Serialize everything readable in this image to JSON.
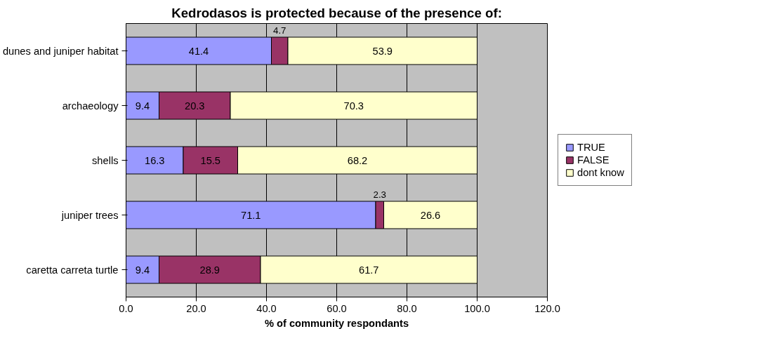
{
  "chart_data": {
    "type": "bar",
    "orientation": "horizontal",
    "stacked": true,
    "title": "Kedrodasos is protected because of the presence of:",
    "xlabel": "% of community respondants",
    "categories": [
      "dunes and juniper habitat",
      "archaeology",
      "shells",
      "juniper trees",
      "caretta carreta turtle"
    ],
    "series": [
      {
        "name": "TRUE",
        "color": "#9999ff",
        "values": [
          41.4,
          9.4,
          16.3,
          71.1,
          9.4
        ]
      },
      {
        "name": "FALSE",
        "color": "#993366",
        "values": [
          4.7,
          20.3,
          15.5,
          2.3,
          28.9
        ]
      },
      {
        "name": "dont know",
        "color": "#ffffcc",
        "values": [
          53.9,
          70.3,
          68.2,
          26.6,
          61.7
        ]
      }
    ],
    "xlim": [
      0,
      120
    ],
    "xticks": [
      {
        "value": 0,
        "label": "0.0"
      },
      {
        "value": 20,
        "label": "20.0"
      },
      {
        "value": 40,
        "label": "40.0"
      },
      {
        "value": 60,
        "label": "60.0"
      },
      {
        "value": 80,
        "label": "80.0"
      },
      {
        "value": 100,
        "label": "100.0"
      },
      {
        "value": 120,
        "label": "120.0"
      }
    ],
    "grid": "x",
    "legend": "right",
    "data_labels": true
  }
}
